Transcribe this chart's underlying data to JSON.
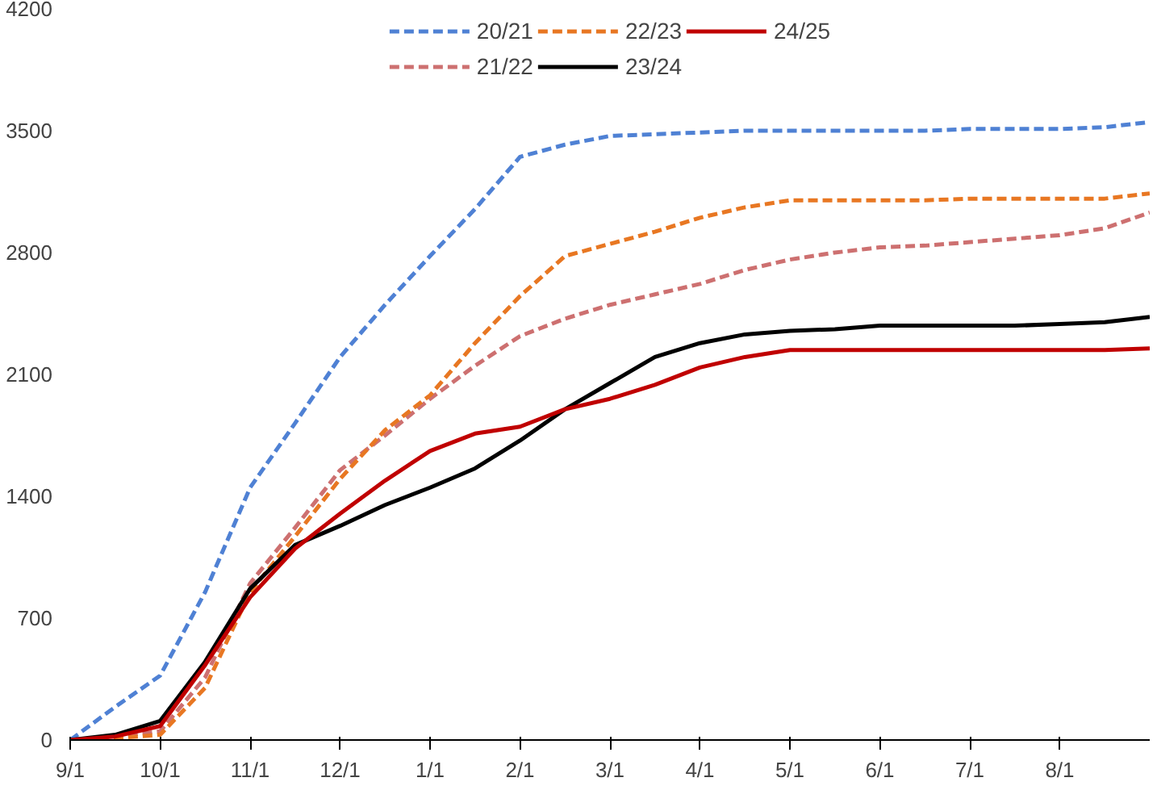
{
  "chart_data": {
    "type": "line",
    "categories": [
      "9/1",
      null,
      "10/1",
      null,
      "11/1",
      null,
      "12/1",
      null,
      "1/1",
      null,
      "2/1",
      null,
      "3/1",
      null,
      "4/1",
      null,
      "5/1",
      null,
      "6/1",
      null,
      "7/1",
      null,
      "8/1",
      null,
      null
    ],
    "ylim": [
      0,
      4200
    ],
    "yticks": [
      0,
      700,
      1400,
      2100,
      2800,
      3500,
      4200
    ],
    "grid": false,
    "legend": "top",
    "marker": "none",
    "series": [
      {
        "name": "20/21",
        "color": "#4f81d4",
        "line_style": "dashed",
        "values": [
          0,
          190,
          370,
          850,
          1450,
          1820,
          2200,
          2500,
          2780,
          3050,
          3350,
          3420,
          3470,
          3480,
          3490,
          3500,
          3500,
          3500,
          3500,
          3500,
          3510,
          3510,
          3510,
          3520,
          3550
        ]
      },
      {
        "name": "21/22",
        "color": "#cd7070",
        "line_style": "dashed",
        "values": [
          0,
          20,
          50,
          360,
          900,
          1220,
          1550,
          1750,
          1960,
          2150,
          2320,
          2420,
          2500,
          2560,
          2620,
          2700,
          2760,
          2800,
          2830,
          2840,
          2860,
          2880,
          2900,
          2940,
          3030
        ]
      },
      {
        "name": "22/23",
        "color": "#e87722",
        "line_style": "dashed",
        "values": [
          0,
          10,
          30,
          300,
          850,
          1170,
          1500,
          1780,
          1980,
          2280,
          2550,
          2780,
          2850,
          2920,
          3000,
          3060,
          3100,
          3100,
          3100,
          3100,
          3110,
          3110,
          3110,
          3110,
          3140
        ]
      },
      {
        "name": "23/24",
        "color": "#000000",
        "line_style": "solid",
        "values": [
          0,
          30,
          110,
          450,
          870,
          1120,
          1230,
          1350,
          1450,
          1560,
          1720,
          1900,
          2050,
          2200,
          2280,
          2330,
          2350,
          2360,
          2380,
          2380,
          2380,
          2380,
          2390,
          2400,
          2430
        ]
      },
      {
        "name": "24/25",
        "color": "#c00000",
        "line_style": "solid",
        "values": [
          0,
          20,
          80,
          430,
          820,
          1100,
          1300,
          1490,
          1660,
          1760,
          1800,
          1900,
          1960,
          2040,
          2140,
          2200,
          2240,
          2240,
          2240,
          2240,
          2240,
          2240,
          2240,
          2240,
          2250
        ]
      }
    ]
  }
}
